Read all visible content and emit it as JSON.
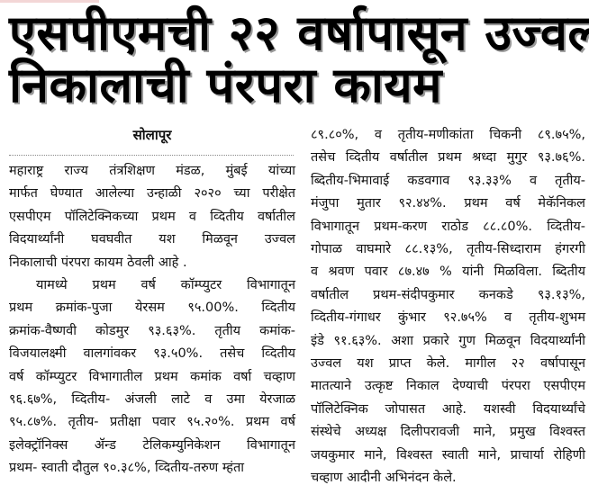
{
  "headline": {
    "line1": "एसपीएमची २२ वर्षापासून उज्वल",
    "line2": "निकालाची पंरपरा कायम"
  },
  "dateline": "सोलापूर",
  "left_column": [
    "महाराष्ट्र राज्य तंत्रशिक्षण मंडळ, मुंबई यांच्या",
    "मार्फत घेण्यात आलेल्या उन्हाळी २०२० च्या परीक्षेत",
    "एसपीएम पॉलिटेक्निकच्या प्रथम व व्दितीय वर्षातील",
    "विदयार्थ्यांनी घवघवीत यश मिळवून उज्वल",
    "निकालाची पंरपरा कायम ठेवली आहे .",
    "यामध्ये प्रथम वर्ष कॉम्प्युटर विभागातून",
    "प्रथम क्रमांक-पुजा येरसम ९५.00%. व्दितीय",
    "क्रमांक-वैष्णवी कोडमुर ९३.६३%. तृतीय कमांक-",
    "विजयालक्ष्मी वालगांवकर ९३.५0%. तसेच व्दितीय",
    "वर्ष कॉम्प्युटर विभागातील प्रथम कमांक वर्षा चव्हाण",
    "९६.६७%, व्दितीय- अंजली लाटे व उमा येरजाळ",
    "९५.८७%. तृतीय- प्रतीक्षा पवार ९५.२०%. प्रथम वर्ष",
    "इलेक्ट्रॉनिक्स ॲन्ड टेलिकम्युनिकेशन विभागातून",
    "प्रथम- स्वाती दौतुल ९०.३८%, व्दितीय-तरुण म्हंता"
  ],
  "right_column": [
    "८९.८०%, व तृतीय-मणीकांता चिकनी ८९.७५%,",
    "तसेच व्दितीय वर्षातील प्रथम श्रध्दा मुगुर ९३.७६%.",
    "ब्दितीय-भिमावाई कडवगाव ९३.३३% व तृतीय-",
    "मंजुपा मुतार ९२.४४%. प्रथम वर्ष मेकॅनिकल",
    "विभागातून प्रथम-करण राठोड ८८.८0%. व्दितीय-",
    "गोपाळ वाघमारे ८८.१३%, तृतीय-सिध्दाराम हंगरगी",
    "व श्रवण पवार ८७.४७ % यांनी मिळविला. ब्दितीय",
    "वर्षातील प्रथम-संदीपकुमार कनकडे ९३.१३%,",
    "व्दितीय-गंगाधर कुंभार ९२.७५% व तृतीय-शुभम",
    "इंडे ९१.६३%. अशा प्रकारे गुण मिळवून विदयार्थ्यांनी",
    "उज्वल यश प्राप्त केले. मागील २२ वर्षापासून",
    "मातत्याने उत्कृष्ट निकाल देण्याची पंरपरा एसपीएम",
    "पॉलिटेक्निक जोपासत आहे. यशस्वी विदयार्थ्यांचे",
    "संस्थेचे अध्यक्ष दिलीपरावजी माने, प्रमुख विश्वस्त",
    "जयकुमार माने, विश्वस्त स्वाती माने, प्राचार्या रोहिणी",
    "चव्हाण आदीनी अभिनंदन केले."
  ]
}
